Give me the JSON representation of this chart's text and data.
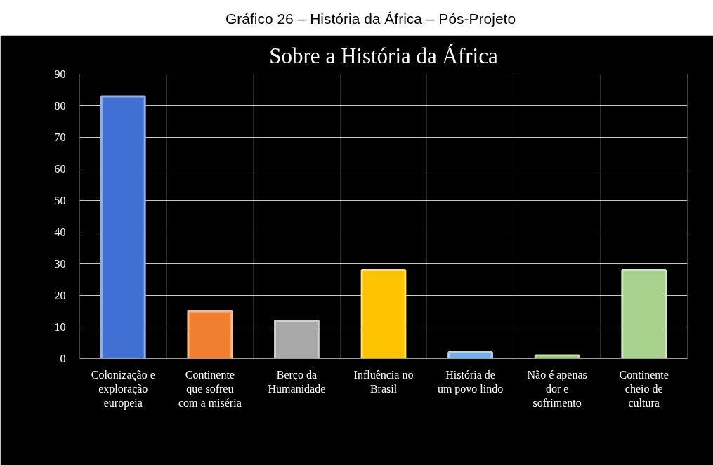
{
  "chart_data": {
    "type": "bar",
    "title": "Sobre a História da África",
    "annotations": [
      "Gráfico 26 – História da África – Pós-Projeto"
    ],
    "categories": [
      "Colonização e exploração europeia",
      "Continente que sofreu com a miséria",
      "Berço da Humanidade",
      "Influência no Brasil",
      "História de um povo lindo",
      "Não é apenas dor e sofrimento",
      "Continente cheio de cultura"
    ],
    "values": [
      83,
      15,
      12,
      28,
      2,
      1,
      28
    ],
    "colors": [
      "#3f70d2",
      "#f08030",
      "#a8a8a8",
      "#ffc400",
      "#6fb0f0",
      "#8cc864",
      "#a9d18e"
    ],
    "ylim": [
      0,
      90
    ],
    "yticks": [
      0,
      10,
      20,
      30,
      40,
      50,
      60,
      70,
      80,
      90
    ],
    "grid": true
  }
}
